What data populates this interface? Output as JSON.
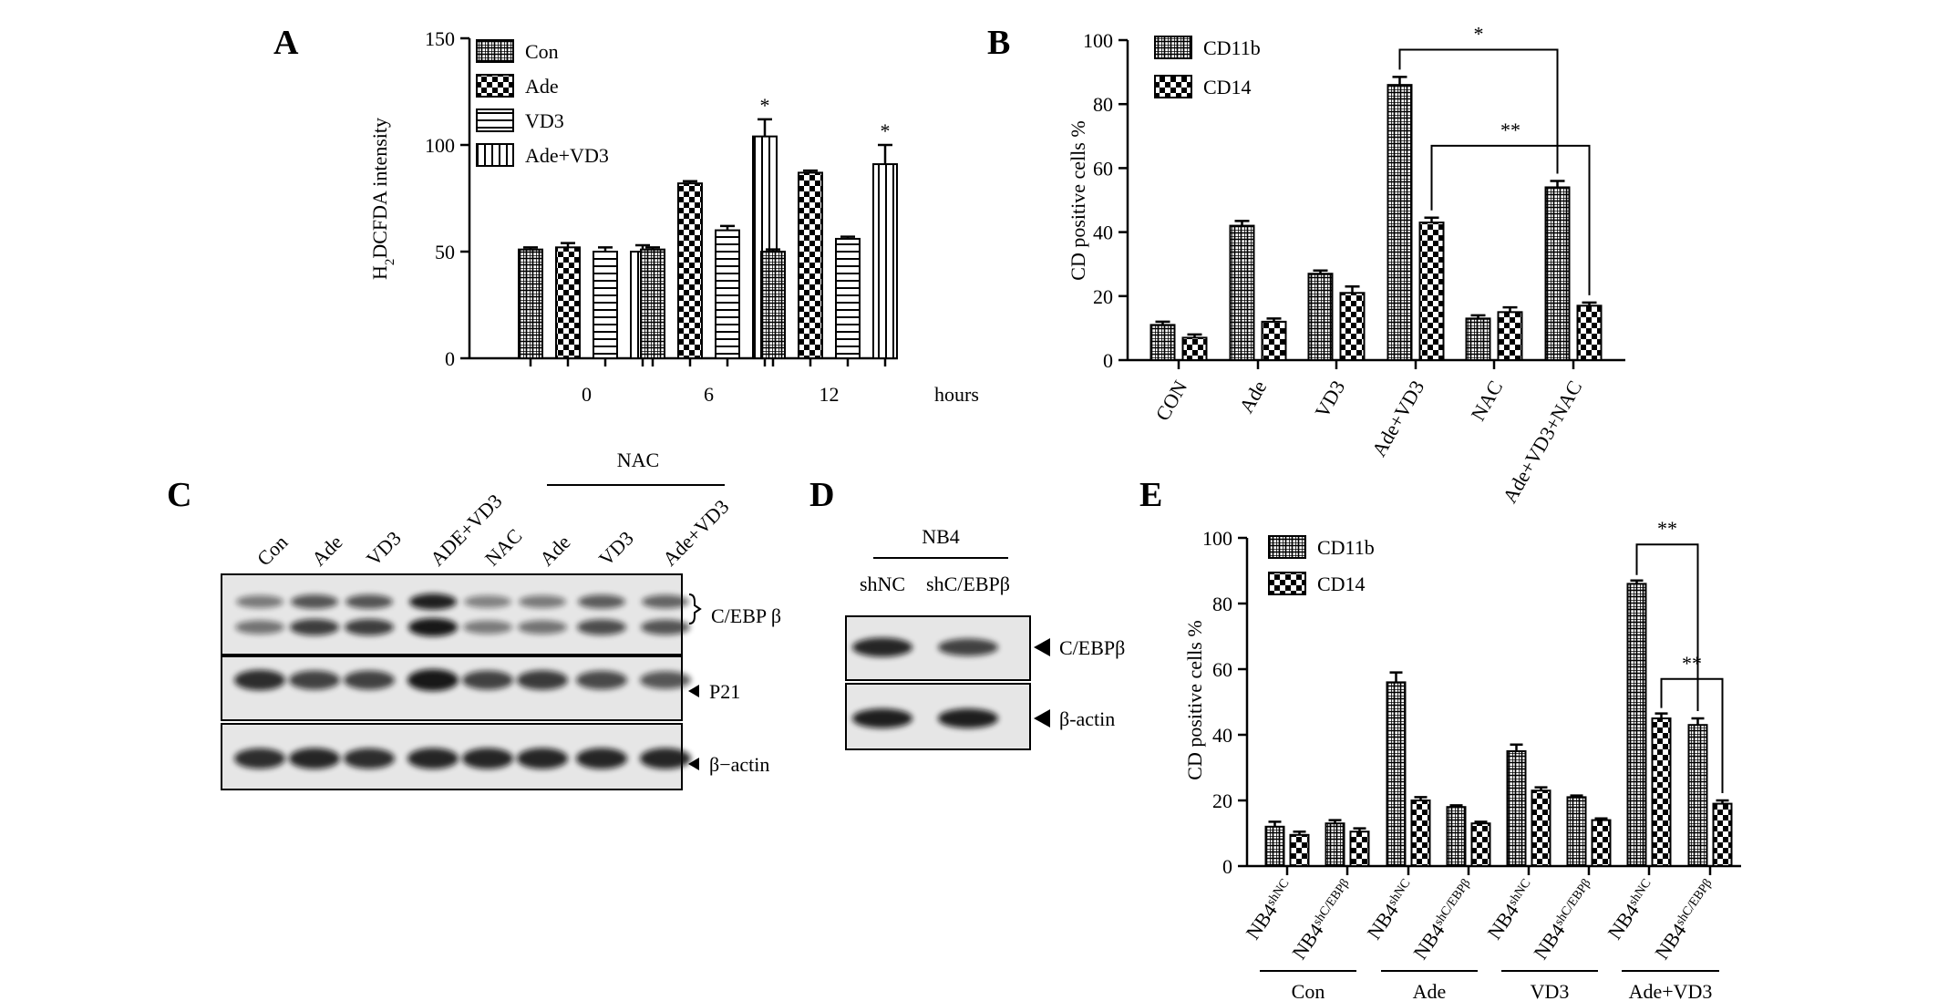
{
  "chart_data": [
    {
      "panel": "A",
      "type": "bar",
      "categories": [
        "0",
        "6",
        "12"
      ],
      "series": [
        {
          "name": "Con",
          "values": [
            51,
            51,
            50
          ],
          "errors": [
            1,
            1,
            1
          ]
        },
        {
          "name": "Ade",
          "values": [
            52,
            82,
            87
          ],
          "errors": [
            2,
            1,
            1
          ]
        },
        {
          "name": "VD3",
          "values": [
            50,
            60,
            56
          ],
          "errors": [
            2,
            2,
            1
          ]
        },
        {
          "name": "Ade+VD3",
          "values": [
            50,
            104,
            91
          ],
          "errors": [
            3,
            8,
            9
          ]
        }
      ],
      "ylabel_main": "H",
      "ylabel_sub": "2",
      "ylabel_rest": "DCFDA intensity",
      "xlabel": "hours",
      "ylim": [
        0,
        150
      ],
      "yticks": [
        0,
        50,
        100,
        150
      ],
      "stars": [
        {
          "category": 1,
          "series": 3,
          "text": "*"
        },
        {
          "category": 2,
          "series": 3,
          "text": "*"
        }
      ],
      "legend": "top-left"
    },
    {
      "panel": "B",
      "type": "bar",
      "categories": [
        "CON",
        "Ade",
        "VD3",
        "Ade+VD3",
        "NAC",
        "Ade+VD3+NAC"
      ],
      "series": [
        {
          "name": "CD11b",
          "values": [
            11,
            42,
            27,
            86,
            13,
            54
          ],
          "errors": [
            1,
            1.5,
            1,
            2.5,
            1,
            2
          ]
        },
        {
          "name": "CD14",
          "values": [
            7,
            12,
            21,
            43,
            15,
            17
          ],
          "errors": [
            1,
            1,
            2,
            1.5,
            1.5,
            1
          ]
        }
      ],
      "ylabel": "CD positive cells %",
      "ylim": [
        0,
        100
      ],
      "yticks": [
        0,
        20,
        40,
        60,
        80,
        100
      ],
      "brackets": [
        {
          "from": [
            3,
            0
          ],
          "to": [
            5,
            0
          ],
          "level": 97,
          "text": "*"
        },
        {
          "from": [
            3,
            1
          ],
          "to": [
            5,
            1
          ],
          "level": 67,
          "text": "**"
        }
      ],
      "legend": "top-left"
    },
    {
      "panel": "E",
      "type": "bar",
      "categories": [
        "NB4shNC",
        "NB4shC/EBPβ",
        "NB4shNC",
        "NB4shC/EBPβ",
        "NB4shNC",
        "NB4shC/EBPβ",
        "NB4shNC",
        "NB4shC/EBPβ"
      ],
      "category_base": "NB4",
      "category_sups": [
        "shNC",
        "shC/EBPβ",
        "shNC",
        "shC/EBPβ",
        "shNC",
        "shC/EBPβ",
        "shNC",
        "shC/EBPβ"
      ],
      "groups": [
        "Con",
        "Ade",
        "VD3",
        "Ade+VD3"
      ],
      "series": [
        {
          "name": "CD11b",
          "values": [
            12,
            13,
            56,
            18,
            35,
            21,
            86,
            43
          ],
          "errors": [
            1.5,
            1,
            3,
            0.5,
            2,
            0.5,
            1,
            2
          ]
        },
        {
          "name": "CD14",
          "values": [
            9.5,
            10.5,
            20,
            13,
            23,
            14,
            45,
            19
          ],
          "errors": [
            1,
            1,
            1,
            0.5,
            1,
            0.5,
            1.5,
            1
          ]
        }
      ],
      "ylabel": "CD positive cells %",
      "ylim": [
        0,
        100
      ],
      "yticks": [
        0,
        20,
        40,
        60,
        80,
        100
      ],
      "brackets": [
        {
          "from": [
            6,
            0
          ],
          "to": [
            7,
            0
          ],
          "level": 98,
          "text": "**"
        },
        {
          "from": [
            6,
            1
          ],
          "to": [
            7,
            1
          ],
          "level": 57,
          "text": "**"
        }
      ],
      "legend": "top-left"
    }
  ],
  "panels": {
    "a": "A",
    "b": "B",
    "c": "C",
    "d": "D",
    "e": "E"
  },
  "blot_c": {
    "lanes": [
      "Con",
      "Ade",
      "VD3",
      "ADE+VD3",
      "NAC",
      "Ade",
      "VD3",
      "Ade+VD3"
    ],
    "group_label": "NAC",
    "rows": [
      {
        "label": "C/EBP β",
        "intensity_upper": [
          0.35,
          0.6,
          0.6,
          0.95,
          0.3,
          0.35,
          0.55,
          0.5
        ],
        "intensity_lower": [
          0.4,
          0.75,
          0.75,
          1.0,
          0.35,
          0.4,
          0.65,
          0.6
        ]
      },
      {
        "label": "P21",
        "intensity": [
          0.85,
          0.7,
          0.7,
          1.0,
          0.7,
          0.75,
          0.65,
          0.55
        ]
      },
      {
        "label": "β−actin",
        "intensity": [
          0.85,
          0.9,
          0.85,
          0.9,
          0.9,
          0.9,
          0.9,
          0.9
        ]
      }
    ]
  },
  "blot_d": {
    "title": "NB4",
    "lanes": [
      "shNC",
      "shC/EBPβ"
    ],
    "rows": [
      {
        "label": "C/EBPβ",
        "intensity": [
          0.9,
          0.7
        ]
      },
      {
        "label": "β-actin",
        "intensity": [
          0.95,
          0.95
        ]
      }
    ]
  },
  "colors": {
    "ink": "#000000",
    "bar_fill": "#ffffff",
    "blot_bg": "#e6e6e6",
    "band": "#111111"
  }
}
